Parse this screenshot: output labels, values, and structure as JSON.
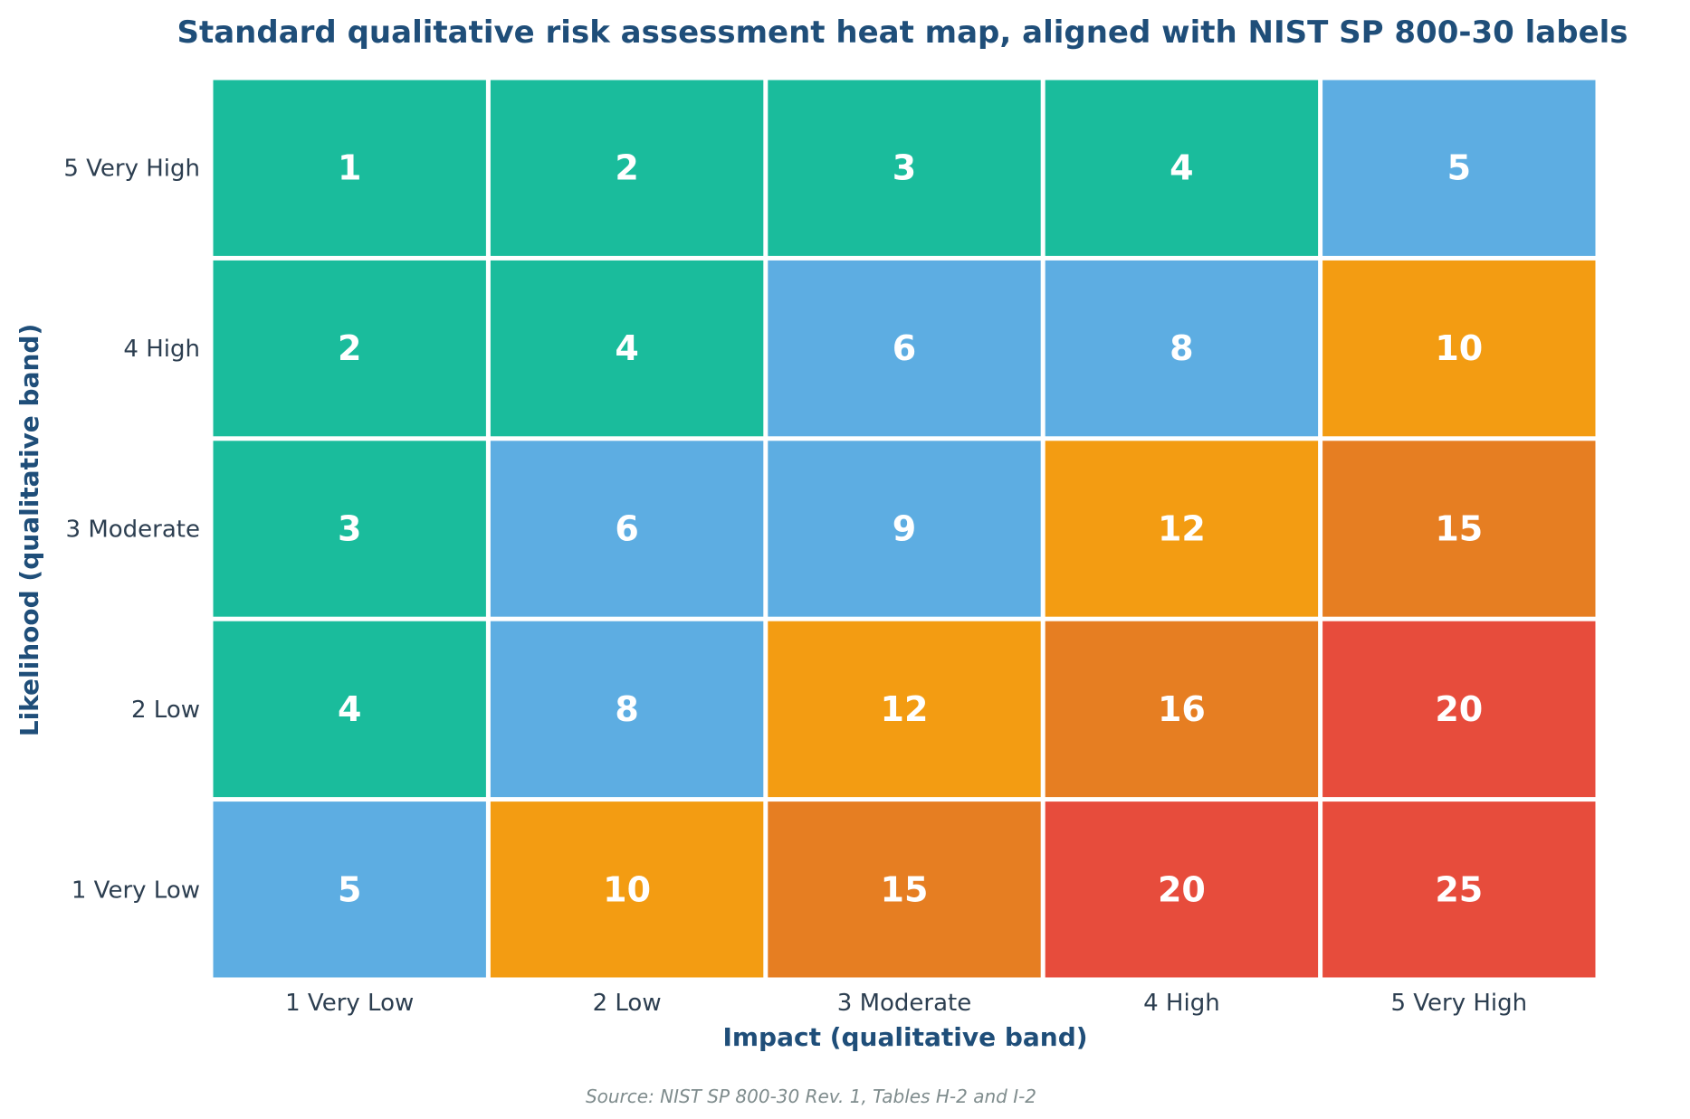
{
  "chart_data": {
    "type": "heatmap",
    "title": "Standard qualitative risk assessment heat map, aligned with NIST SP 800-30 labels",
    "xlabel": "Impact (qualitative band)",
    "ylabel": "Likelihood (qualitative band)",
    "x_categories": [
      "1 Very Low",
      "2 Low",
      "3 Moderate",
      "4 High",
      "5 Very High"
    ],
    "y_categories": [
      "5 Very High",
      "4 High",
      "3 Moderate",
      "2 Low",
      "1 Very Low"
    ],
    "values": [
      [
        1,
        2,
        3,
        4,
        5
      ],
      [
        2,
        4,
        6,
        8,
        10
      ],
      [
        3,
        6,
        9,
        12,
        15
      ],
      [
        4,
        8,
        12,
        16,
        20
      ],
      [
        5,
        10,
        15,
        20,
        25
      ]
    ],
    "color_scale": [
      {
        "max": 4,
        "color": "#1abc9c"
      },
      {
        "max": 9,
        "color": "#5dade2"
      },
      {
        "max": 12,
        "color": "#f39c12"
      },
      {
        "max": 16,
        "color": "#e67e22"
      },
      {
        "max": 25,
        "color": "#e74c3c"
      }
    ],
    "grid": false,
    "legend": "none"
  },
  "source": "Source: NIST SP 800-30 Rev. 1, Tables H-2 and I-2"
}
